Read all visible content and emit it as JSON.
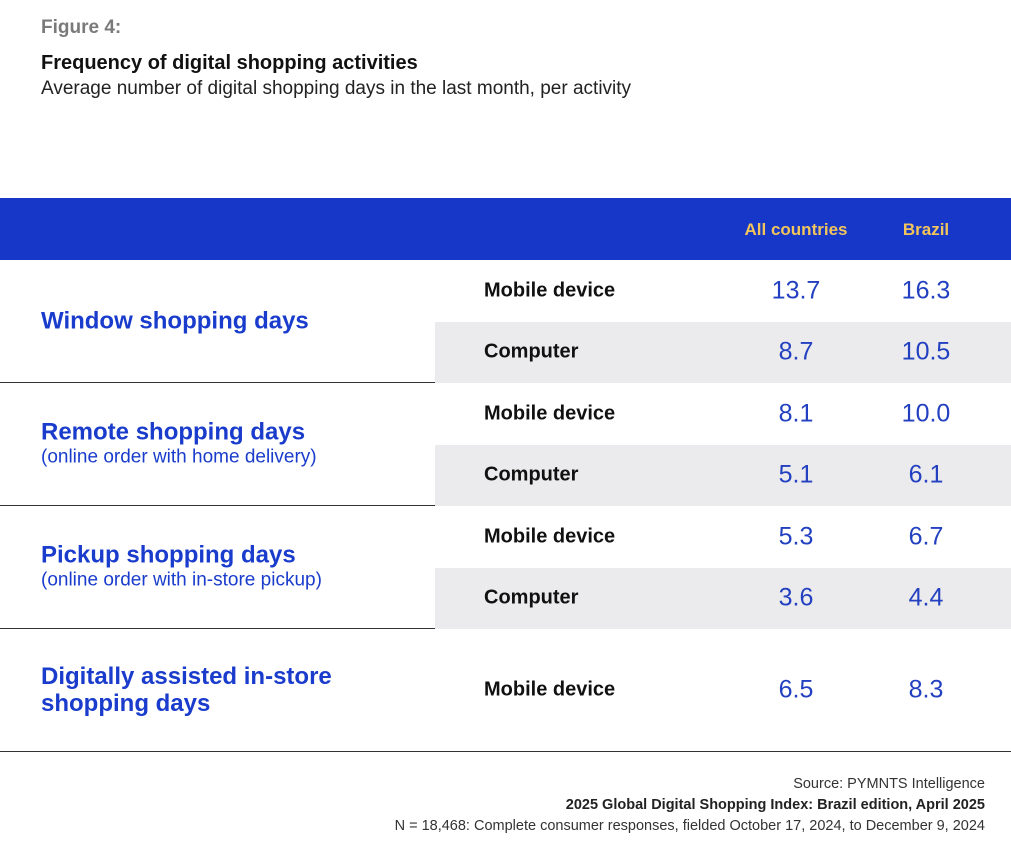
{
  "figure_label": "Figure 4:",
  "title": "Frequency of digital shopping activities",
  "subtitle": "Average number of digital shopping days in the last month, per activity",
  "colors": {
    "header_bg": "#1737c8",
    "header_text": "#f2c55c",
    "accent_text": "#1a3ccc",
    "shade": "#ebebed"
  },
  "chart_data": {
    "type": "table",
    "title": "Frequency of digital shopping activities",
    "columns": [
      "All countries",
      "Brazil"
    ],
    "groups": [
      {
        "name": "Window shopping days",
        "note": "",
        "rows": [
          {
            "device": "Mobile device",
            "values": [
              "13.7",
              "16.3"
            ]
          },
          {
            "device": "Computer",
            "values": [
              "8.7",
              "10.5"
            ]
          }
        ]
      },
      {
        "name": "Remote shopping days",
        "note": "(online order with home delivery)",
        "rows": [
          {
            "device": "Mobile device",
            "values": [
              "8.1",
              "10.0"
            ]
          },
          {
            "device": "Computer",
            "values": [
              "5.1",
              "6.1"
            ]
          }
        ]
      },
      {
        "name": "Pickup shopping days",
        "note": "(online order with in-store pickup)",
        "rows": [
          {
            "device": "Mobile device",
            "values": [
              "5.3",
              "6.7"
            ]
          },
          {
            "device": "Computer",
            "values": [
              "3.6",
              "4.4"
            ]
          }
        ]
      },
      {
        "name": "Digitally assisted in-store shopping days",
        "note": "",
        "rows": [
          {
            "device": "Mobile device",
            "values": [
              "6.5",
              "8.3"
            ]
          }
        ]
      }
    ]
  },
  "footer": {
    "source": "Source: PYMNTS Intelligence",
    "report": "2025 Global Digital Shopping Index: Brazil edition, April 2025",
    "sample": "N = 18,468: Complete consumer responses, fielded October 17, 2024, to December 9, 2024"
  }
}
